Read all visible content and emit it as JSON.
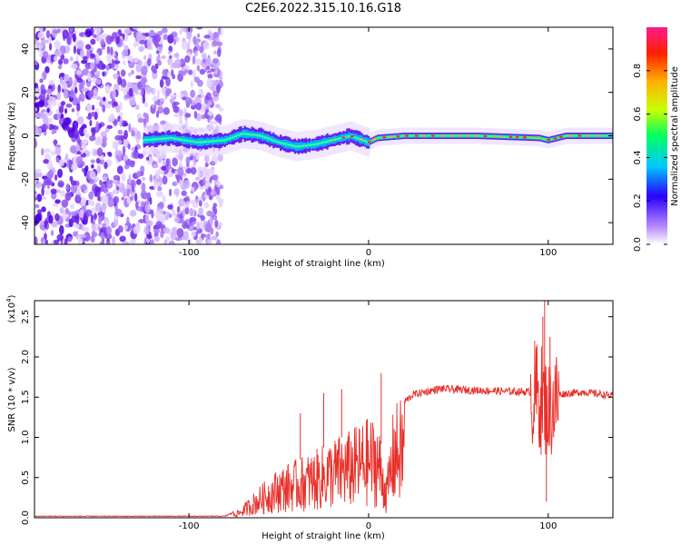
{
  "title": "C2E6.2022.315.10.16.G18",
  "chart_data": [
    {
      "type": "heatmap",
      "xlabel": "Height of straight line (km)",
      "ylabel": "Frequency (Hz)",
      "xlim": [
        -186,
        136
      ],
      "ylim": [
        -50,
        50
      ],
      "xticks": [
        "-100",
        "0",
        "100"
      ],
      "yticks": [
        "-40",
        "-20",
        "0",
        "20",
        "40"
      ],
      "colorbar": {
        "label": "Normalized spectral amplitude",
        "range": [
          0.0,
          1.0
        ],
        "ticks": [
          "0.0",
          "0.2",
          "0.4",
          "0.6",
          "0.8"
        ]
      },
      "ridge": [
        {
          "x": -125,
          "y": -2
        },
        {
          "x": -110,
          "y": -1
        },
        {
          "x": -95,
          "y": -3
        },
        {
          "x": -80,
          "y": -2
        },
        {
          "x": -70,
          "y": 1
        },
        {
          "x": -60,
          "y": 0
        },
        {
          "x": -50,
          "y": -3
        },
        {
          "x": -40,
          "y": -5
        },
        {
          "x": -30,
          "y": -4
        },
        {
          "x": -20,
          "y": -2
        },
        {
          "x": -10,
          "y": 0
        },
        {
          "x": 0,
          "y": -3
        },
        {
          "x": 5,
          "y": -1
        },
        {
          "x": 20,
          "y": 0
        },
        {
          "x": 60,
          "y": 0
        },
        {
          "x": 95,
          "y": -1
        },
        {
          "x": 100,
          "y": -2
        },
        {
          "x": 110,
          "y": 0
        },
        {
          "x": 136,
          "y": 0
        }
      ]
    },
    {
      "type": "line",
      "xlabel": "Height of straight line (km)",
      "ylabel": "SNR (10 * v/v)",
      "yscale_note": "(x10",
      "yscale_exp": "4",
      "xlim": [
        -186,
        136
      ],
      "ylim": [
        0,
        2.7
      ],
      "xticks": [
        "-100",
        "0",
        "100"
      ],
      "yticks": [
        "0.0",
        "0.5",
        "1.0",
        "1.5",
        "2.0",
        "2.5"
      ],
      "series": [
        {
          "color": "#e8302a",
          "envelope": [
            {
              "x": -186,
              "y": 0.02
            },
            {
              "x": -80,
              "y": 0.02
            },
            {
              "x": -72,
              "y": 0.1
            },
            {
              "x": -62,
              "y": 0.35
            },
            {
              "x": -50,
              "y": 0.6
            },
            {
              "x": -40,
              "y": 0.7
            },
            {
              "x": -30,
              "y": 0.8
            },
            {
              "x": -20,
              "y": 0.95
            },
            {
              "x": -10,
              "y": 1.05
            },
            {
              "x": 0,
              "y": 1.2
            },
            {
              "x": 5,
              "y": 1.2
            },
            {
              "x": 10,
              "y": 0.5
            },
            {
              "x": 14,
              "y": 1.35
            },
            {
              "x": 25,
              "y": 1.55
            },
            {
              "x": 40,
              "y": 1.62
            },
            {
              "x": 60,
              "y": 1.6
            },
            {
              "x": 90,
              "y": 1.58
            },
            {
              "x": 95,
              "y": 1.6
            },
            {
              "x": 100,
              "y": 1.4
            },
            {
              "x": 105,
              "y": 1.55
            },
            {
              "x": 120,
              "y": 1.58
            },
            {
              "x": 136,
              "y": 1.53
            }
          ],
          "spikes": [
            {
              "x": -38,
              "y": 1.3
            },
            {
              "x": -25,
              "y": 1.55
            },
            {
              "x": -15,
              "y": 1.6
            },
            {
              "x": 7,
              "y": 1.8
            },
            {
              "x": 10,
              "y": 0.35
            },
            {
              "x": 97,
              "y": 2.5
            },
            {
              "x": 98,
              "y": 2.7
            },
            {
              "x": 99,
              "y": 0.2
            },
            {
              "x": 101,
              "y": 2.25
            }
          ]
        }
      ]
    }
  ]
}
